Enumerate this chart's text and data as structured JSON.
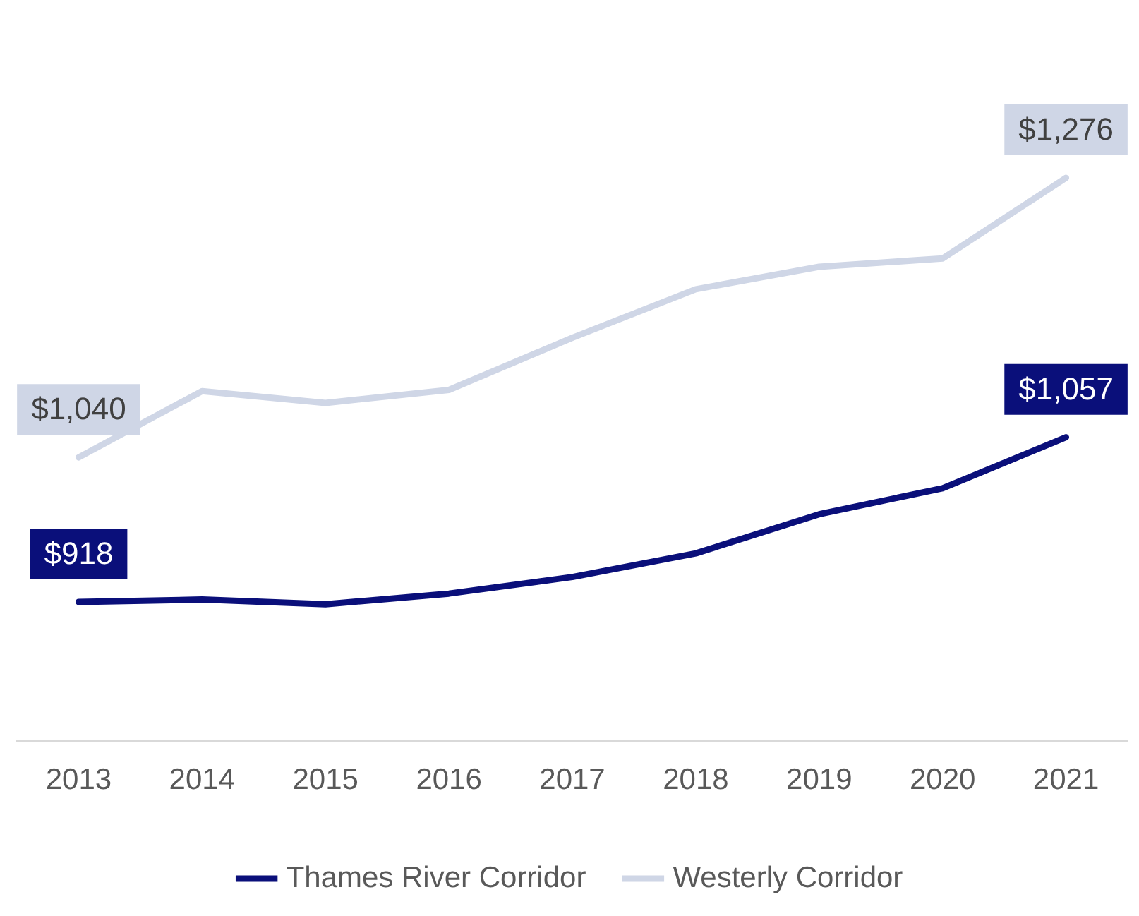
{
  "chart_data": {
    "type": "line",
    "categories": [
      "2013",
      "2014",
      "2015",
      "2016",
      "2017",
      "2018",
      "2019",
      "2020",
      "2021"
    ],
    "series": [
      {
        "name": "Thames River Corridor",
        "color": "#0a0f7a",
        "values": [
          918,
          920,
          916,
          925,
          939,
          959,
          992,
          1014,
          1057
        ],
        "value_labels": [
          "$918",
          null,
          null,
          null,
          null,
          null,
          null,
          null,
          "$1,057"
        ]
      },
      {
        "name": "Westerly Corridor",
        "color": "#cfd6e6",
        "values": [
          1040,
          1096,
          1086,
          1097,
          1141,
          1182,
          1201,
          1208,
          1276
        ],
        "value_labels": [
          "$1,040",
          null,
          null,
          null,
          null,
          null,
          null,
          null,
          "$1,276"
        ]
      }
    ],
    "tick_labels": "x",
    "grid": false,
    "legend": "bottom",
    "marker": "none",
    "line_style": "solid"
  }
}
